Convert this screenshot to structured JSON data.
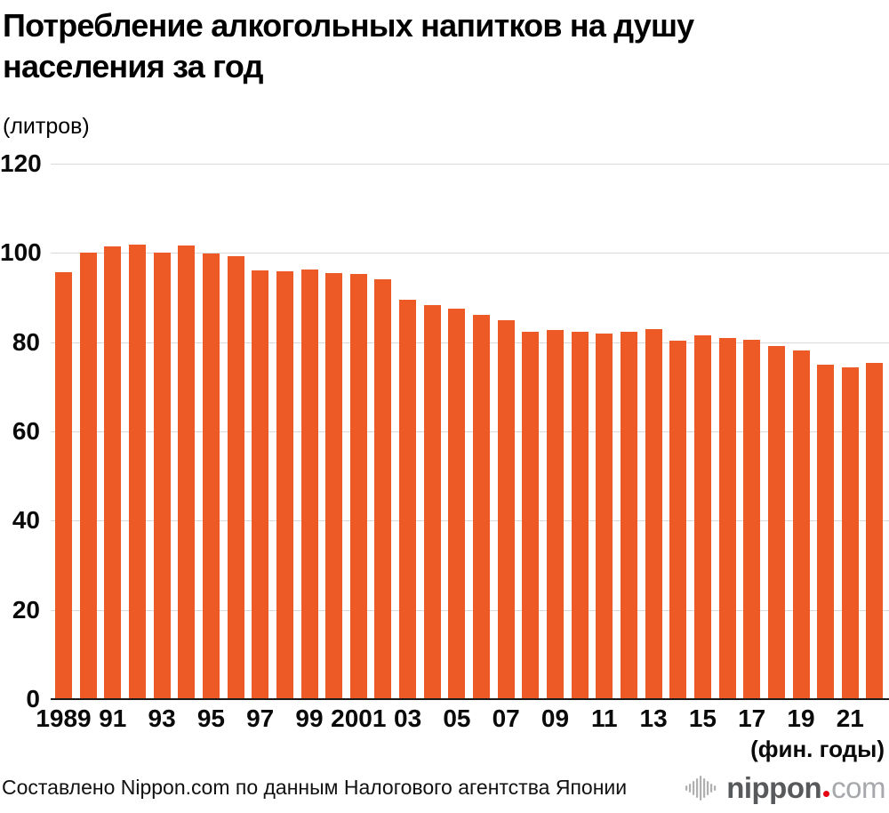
{
  "header": {
    "title_line1": "Потребление алкогольных напитков на душу",
    "title_line2": "населения за год",
    "unit_label": "(литров)"
  },
  "chart_data": {
    "type": "bar",
    "title": "Потребление алкогольных напитков на душу населения за год",
    "ylabel": "(литров)",
    "xlabel": "(фин. годы)",
    "ylim": [
      0,
      120
    ],
    "y_ticks": [
      0,
      20,
      40,
      60,
      80,
      100,
      120
    ],
    "grid": "horizontal",
    "bar_color": "#ed5a26",
    "x_tick_labels": [
      "1989",
      "91",
      "93",
      "95",
      "97",
      "99",
      "2001",
      "03",
      "05",
      "07",
      "09",
      "11",
      "13",
      "15",
      "17",
      "19",
      "21"
    ],
    "categories": [
      1989,
      1990,
      1991,
      1992,
      1993,
      1994,
      1995,
      1996,
      1997,
      1998,
      1999,
      2000,
      2001,
      2002,
      2003,
      2004,
      2005,
      2006,
      2007,
      2008,
      2009,
      2010,
      2011,
      2012,
      2013,
      2014,
      2015,
      2016,
      2017,
      2018,
      2019,
      2020,
      2021,
      2022
    ],
    "values": [
      95.7,
      100.0,
      101.4,
      101.8,
      100.0,
      101.6,
      99.9,
      99.3,
      96.0,
      95.8,
      96.2,
      95.4,
      95.2,
      94.0,
      89.6,
      88.4,
      87.6,
      86.1,
      84.9,
      82.4,
      82.8,
      82.4,
      81.9,
      82.3,
      83.0,
      80.3,
      81.6,
      81.0,
      80.6,
      79.2,
      78.2,
      75.0,
      74.3,
      75.4
    ]
  },
  "footer": {
    "source": "Составлено Nippon.com по данным Налогового агентства Японии",
    "logo": {
      "name": "nippon.com",
      "text_main": "nippon",
      "text_suffix": "com",
      "dot_color": "#e60012",
      "icon_color": "#b0b0b0"
    }
  }
}
